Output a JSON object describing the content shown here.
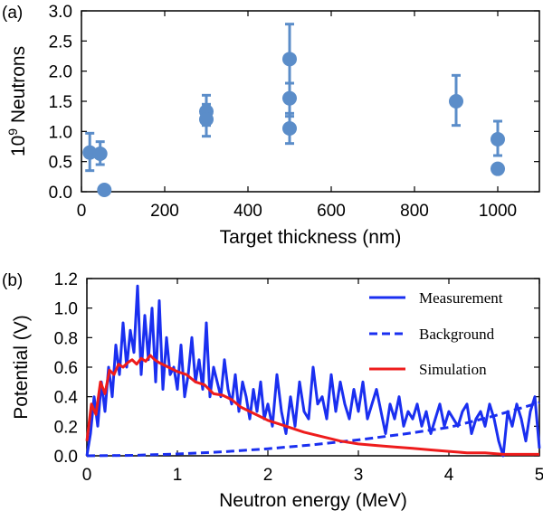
{
  "chart_data": [
    {
      "type": "scatter",
      "panel_label": "(a)",
      "title": "",
      "xlabel": "Target thickness (nm)",
      "ylabel_base": "10",
      "ylabel_sup": "9",
      "ylabel_rest": " Neutrons",
      "xlim": [
        0,
        1100
      ],
      "ylim": [
        0,
        3.0
      ],
      "xticks": [
        0,
        200,
        400,
        600,
        800,
        1000
      ],
      "yticks": [
        0.0,
        0.5,
        1.0,
        1.5,
        2.0,
        2.5,
        3.0
      ],
      "xtick_labels": [
        "0",
        "200",
        "400",
        "600",
        "800",
        "1000"
      ],
      "ytick_labels": [
        "0.0",
        "0.5",
        "1.0",
        "1.5",
        "2.0",
        "2.5",
        "3.0"
      ],
      "marker_color": "#5b8dc9",
      "points": [
        {
          "x": 20,
          "y": 0.65,
          "err_low": 0.35,
          "err_high": 0.97
        },
        {
          "x": 45,
          "y": 0.63,
          "err_low": 0.45,
          "err_high": 0.83
        },
        {
          "x": 55,
          "y": 0.03,
          "err_low": 0.03,
          "err_high": 0.03
        },
        {
          "x": 300,
          "y": 1.33,
          "err_low": 1.1,
          "err_high": 1.6
        },
        {
          "x": 300,
          "y": 1.2,
          "err_low": 0.92,
          "err_high": 1.45
        },
        {
          "x": 500,
          "y": 2.2,
          "err_low": 1.55,
          "err_high": 2.78
        },
        {
          "x": 500,
          "y": 1.55,
          "err_low": 1.25,
          "err_high": 1.8
        },
        {
          "x": 500,
          "y": 1.05,
          "err_low": 0.8,
          "err_high": 1.3
        },
        {
          "x": 900,
          "y": 1.5,
          "err_low": 1.1,
          "err_high": 1.93
        },
        {
          "x": 1000,
          "y": 0.87,
          "err_low": 0.6,
          "err_high": 1.17
        },
        {
          "x": 1000,
          "y": 0.38,
          "err_low": 0.38,
          "err_high": 0.38
        }
      ]
    },
    {
      "type": "line",
      "panel_label": "(b)",
      "title": "",
      "xlabel": "Neutron energy (MeV)",
      "ylabel": "Potential (V)",
      "xlim": [
        0,
        5
      ],
      "ylim": [
        0,
        1.2
      ],
      "xticks": [
        0,
        1,
        2,
        3,
        4,
        5
      ],
      "yticks": [
        0.0,
        0.2,
        0.4,
        0.6,
        0.8,
        1.0,
        1.2
      ],
      "xtick_labels": [
        "0",
        "1",
        "2",
        "3",
        "4",
        "5"
      ],
      "ytick_labels": [
        "0.0",
        "0.2",
        "0.4",
        "0.6",
        "0.8",
        "1.0",
        "1.2"
      ],
      "legend_position": "top-right",
      "series": [
        {
          "name": "Measurement",
          "color": "#1a2ff0",
          "style": "solid",
          "x": [
            0.0,
            0.04,
            0.08,
            0.12,
            0.16,
            0.2,
            0.24,
            0.28,
            0.32,
            0.36,
            0.4,
            0.44,
            0.48,
            0.52,
            0.56,
            0.6,
            0.64,
            0.68,
            0.72,
            0.76,
            0.8,
            0.84,
            0.88,
            0.92,
            0.96,
            1.0,
            1.04,
            1.08,
            1.12,
            1.16,
            1.2,
            1.24,
            1.28,
            1.32,
            1.36,
            1.4,
            1.44,
            1.48,
            1.52,
            1.56,
            1.6,
            1.64,
            1.68,
            1.72,
            1.76,
            1.8,
            1.84,
            1.88,
            1.92,
            1.96,
            2.0,
            2.05,
            2.1,
            2.15,
            2.2,
            2.25,
            2.3,
            2.35,
            2.4,
            2.45,
            2.5,
            2.55,
            2.6,
            2.65,
            2.7,
            2.75,
            2.8,
            2.85,
            2.9,
            2.95,
            3.0,
            3.05,
            3.1,
            3.15,
            3.2,
            3.25,
            3.3,
            3.35,
            3.4,
            3.45,
            3.5,
            3.55,
            3.6,
            3.65,
            3.7,
            3.75,
            3.8,
            3.85,
            3.9,
            3.95,
            4.0,
            4.05,
            4.1,
            4.15,
            4.2,
            4.25,
            4.3,
            4.35,
            4.4,
            4.45,
            4.5,
            4.55,
            4.6,
            4.65,
            4.7,
            4.75,
            4.8,
            4.85,
            4.9,
            4.95,
            5.0
          ],
          "y": [
            0.0,
            0.15,
            0.4,
            0.2,
            0.5,
            0.3,
            0.6,
            0.4,
            0.75,
            0.55,
            0.9,
            0.6,
            0.85,
            0.7,
            1.15,
            0.55,
            0.95,
            0.65,
            1.0,
            0.5,
            1.05,
            0.45,
            0.8,
            0.55,
            0.6,
            0.45,
            0.75,
            0.4,
            0.55,
            0.8,
            0.5,
            0.65,
            0.45,
            0.9,
            0.4,
            0.6,
            0.5,
            0.4,
            0.65,
            0.45,
            0.35,
            0.55,
            0.3,
            0.5,
            0.4,
            0.25,
            0.45,
            0.3,
            0.5,
            0.25,
            0.35,
            0.2,
            0.55,
            0.3,
            0.15,
            0.4,
            0.2,
            0.5,
            0.3,
            0.25,
            0.6,
            0.35,
            0.4,
            0.25,
            0.55,
            0.3,
            0.5,
            0.35,
            0.25,
            0.45,
            0.3,
            0.5,
            0.25,
            0.35,
            0.45,
            0.3,
            0.15,
            0.35,
            0.25,
            0.4,
            0.2,
            0.3,
            0.25,
            0.35,
            0.2,
            0.3,
            0.15,
            0.25,
            0.35,
            0.2,
            0.3,
            0.25,
            0.2,
            0.3,
            0.35,
            0.15,
            0.25,
            0.3,
            0.2,
            0.35,
            0.25,
            0.1,
            0.0,
            0.3,
            0.2,
            0.35,
            0.25,
            0.1,
            0.3,
            0.4,
            0.05
          ]
        },
        {
          "name": "Background",
          "color": "#1a2ff0",
          "style": "dashed",
          "x": [
            0.0,
            0.5,
            1.0,
            1.5,
            2.0,
            2.5,
            3.0,
            3.5,
            4.0,
            4.5,
            5.0
          ],
          "y": [
            0.0,
            0.003,
            0.012,
            0.027,
            0.048,
            0.075,
            0.108,
            0.147,
            0.192,
            0.27,
            0.36
          ]
        },
        {
          "name": "Simulation",
          "color": "#ee1c1c",
          "style": "solid",
          "x": [
            0.0,
            0.05,
            0.1,
            0.15,
            0.2,
            0.25,
            0.3,
            0.35,
            0.4,
            0.45,
            0.5,
            0.55,
            0.6,
            0.65,
            0.7,
            0.75,
            0.8,
            0.9,
            1.0,
            1.1,
            1.2,
            1.3,
            1.4,
            1.5,
            1.6,
            1.7,
            1.8,
            1.9,
            2.0,
            2.2,
            2.4,
            2.6,
            2.8,
            3.0,
            3.2,
            3.4,
            3.6,
            3.8,
            4.0,
            4.2,
            4.4,
            4.6,
            4.8,
            5.0
          ],
          "y": [
            0.1,
            0.35,
            0.28,
            0.5,
            0.42,
            0.58,
            0.55,
            0.62,
            0.6,
            0.63,
            0.65,
            0.62,
            0.66,
            0.64,
            0.68,
            0.65,
            0.63,
            0.6,
            0.57,
            0.55,
            0.5,
            0.48,
            0.42,
            0.41,
            0.38,
            0.33,
            0.3,
            0.27,
            0.24,
            0.2,
            0.16,
            0.13,
            0.1,
            0.08,
            0.07,
            0.06,
            0.05,
            0.04,
            0.03,
            0.02,
            0.02,
            0.01,
            0.01,
            0.01
          ]
        }
      ]
    }
  ]
}
